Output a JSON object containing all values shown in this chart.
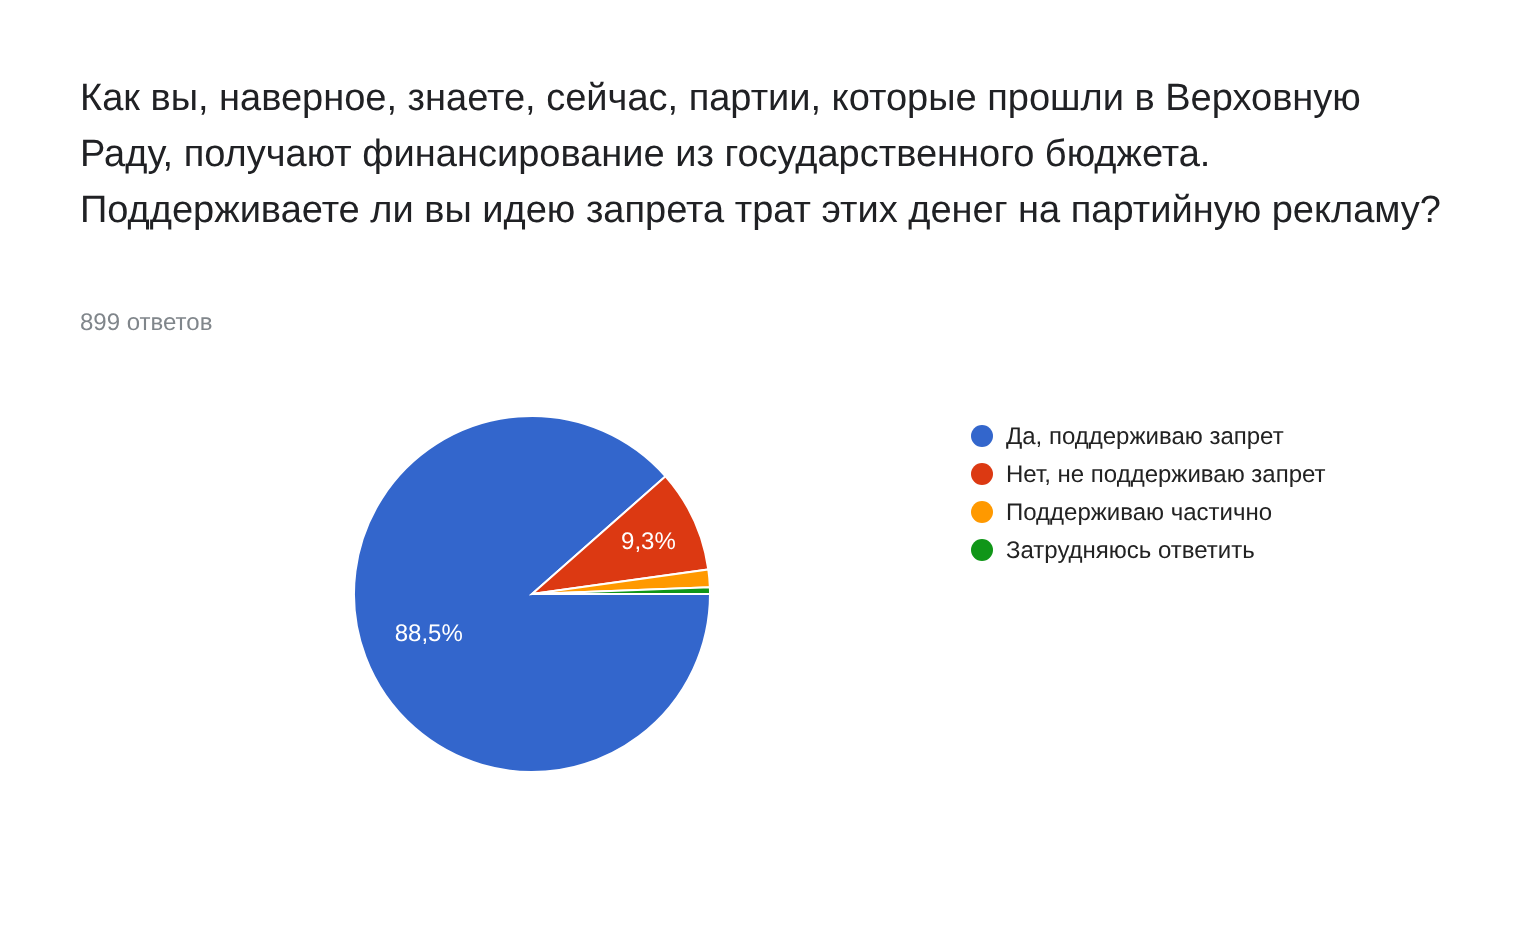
{
  "chart_data": {
    "type": "pie",
    "title": "Как вы, наверное, знаете, сейчас, партии, которые прошли в Верховную Раду, получают финансирование из государственного бюджета. Поддерживаете ли вы идею запрета трат этих денег на партийную рекламу?",
    "subtitle": "899 ответов",
    "categories": [
      "Да, поддерживаю запрет",
      "Нет, не поддерживаю запрет",
      "Поддерживаю частично",
      "Затрудняюсь ответить"
    ],
    "values": [
      88.5,
      9.3,
      1.6,
      0.6
    ],
    "colors": [
      "#3366cc",
      "#dc3912",
      "#ff9900",
      "#109618"
    ],
    "value_labels": [
      "88,5%",
      "9,3%",
      null,
      null
    ],
    "legend": "right"
  }
}
